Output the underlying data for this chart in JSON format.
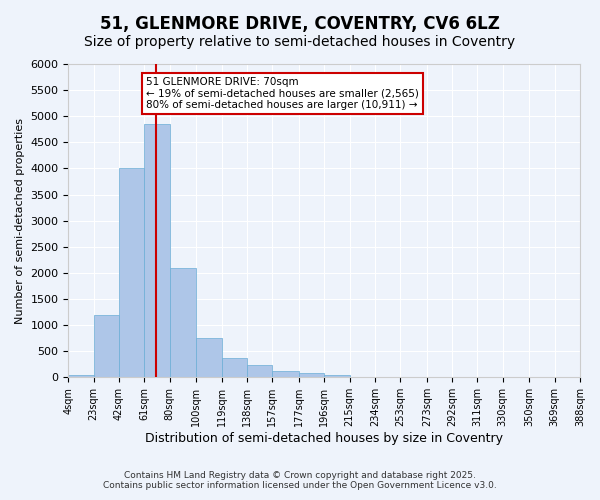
{
  "title_line1": "51, GLENMORE DRIVE, COVENTRY, CV6 6LZ",
  "title_line2": "Size of property relative to semi-detached houses in Coventry",
  "xlabel": "Distribution of semi-detached houses by size in Coventry",
  "ylabel": "Number of semi-detached properties",
  "annotation_title": "51 GLENMORE DRIVE: 70sqm",
  "annotation_line2": "← 19% of semi-detached houses are smaller (2,565)",
  "annotation_line3": "80% of semi-detached houses are larger (10,911) →",
  "footer_line1": "Contains HM Land Registry data © Crown copyright and database right 2025.",
  "footer_line2": "Contains public sector information licensed under the Open Government Licence v3.0.",
  "property_size": 70,
  "bin_edges": [
    4,
    23,
    42,
    61,
    80,
    100,
    119,
    138,
    157,
    177,
    196,
    215,
    234,
    253,
    273,
    292,
    311,
    330,
    350,
    369,
    388
  ],
  "bin_labels": [
    "4sqm",
    "23sqm",
    "42sqm",
    "61sqm",
    "80sqm",
    "100sqm",
    "119sqm",
    "138sqm",
    "157sqm",
    "177sqm",
    "196sqm",
    "215sqm",
    "234sqm",
    "253sqm",
    "273sqm",
    "292sqm",
    "311sqm",
    "330sqm",
    "350sqm",
    "369sqm",
    "388sqm"
  ],
  "bar_heights": [
    50,
    1200,
    4000,
    4850,
    2100,
    750,
    370,
    230,
    120,
    80,
    50,
    0,
    0,
    0,
    0,
    0,
    0,
    0,
    0,
    0
  ],
  "bar_color": "#aec6e8",
  "bar_edge_color": "#6baed6",
  "vline_color": "#cc0000",
  "vline_x": 70,
  "ylim": [
    0,
    6000
  ],
  "yticks": [
    0,
    500,
    1000,
    1500,
    2000,
    2500,
    3000,
    3500,
    4000,
    4500,
    5000,
    5500,
    6000
  ],
  "bg_color": "#eef3fb",
  "plot_bg_color": "#eef3fb",
  "grid_color": "#ffffff",
  "title_fontsize": 12,
  "subtitle_fontsize": 10,
  "annotation_box_color": "#ffffff",
  "annotation_box_edge": "#cc0000"
}
